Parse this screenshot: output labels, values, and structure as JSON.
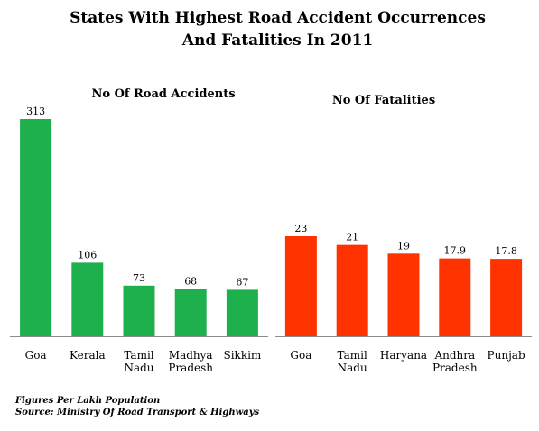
{
  "title_line1": "States With Highest Road Accident Occurrences",
  "title_line2": "And Fatalities In 2011",
  "chart_data": [
    {
      "type": "bar",
      "title": "No Of Road Accidents",
      "categories": [
        "Goa",
        "Kerala",
        "Tamil Nadu",
        "Madhya Pradesh",
        "Sikkim"
      ],
      "category_lines": [
        [
          "Goa"
        ],
        [
          "Kerala"
        ],
        [
          "Tamil",
          "Nadu"
        ],
        [
          "Madhya",
          "Pradesh"
        ],
        [
          "Sikkim"
        ]
      ],
      "values": [
        313,
        106,
        73,
        68,
        67
      ],
      "value_labels": [
        "313",
        "106",
        "73",
        "68",
        "67"
      ],
      "color": "#1fb04e",
      "ylim": [
        0,
        313
      ]
    },
    {
      "type": "bar",
      "title": "No Of Fatalities",
      "categories": [
        "Goa",
        "Tamil Nadu",
        "Haryana",
        "Andhra Pradesh",
        "Punjab"
      ],
      "category_lines": [
        [
          "Goa"
        ],
        [
          "Tamil",
          "Nadu"
        ],
        [
          "Haryana"
        ],
        [
          "Andhra",
          "Pradesh"
        ],
        [
          "Punjab"
        ]
      ],
      "values": [
        23,
        21,
        19,
        17.9,
        17.8
      ],
      "value_labels": [
        "23",
        "21",
        "19",
        "17.9",
        "17.8"
      ],
      "color": "#ff3300",
      "ylim": [
        0,
        23
      ]
    }
  ],
  "footnote_line1": "Figures Per Lakh Population",
  "footnote_line2": "Source:  Ministry Of Road Transport  & Highways"
}
